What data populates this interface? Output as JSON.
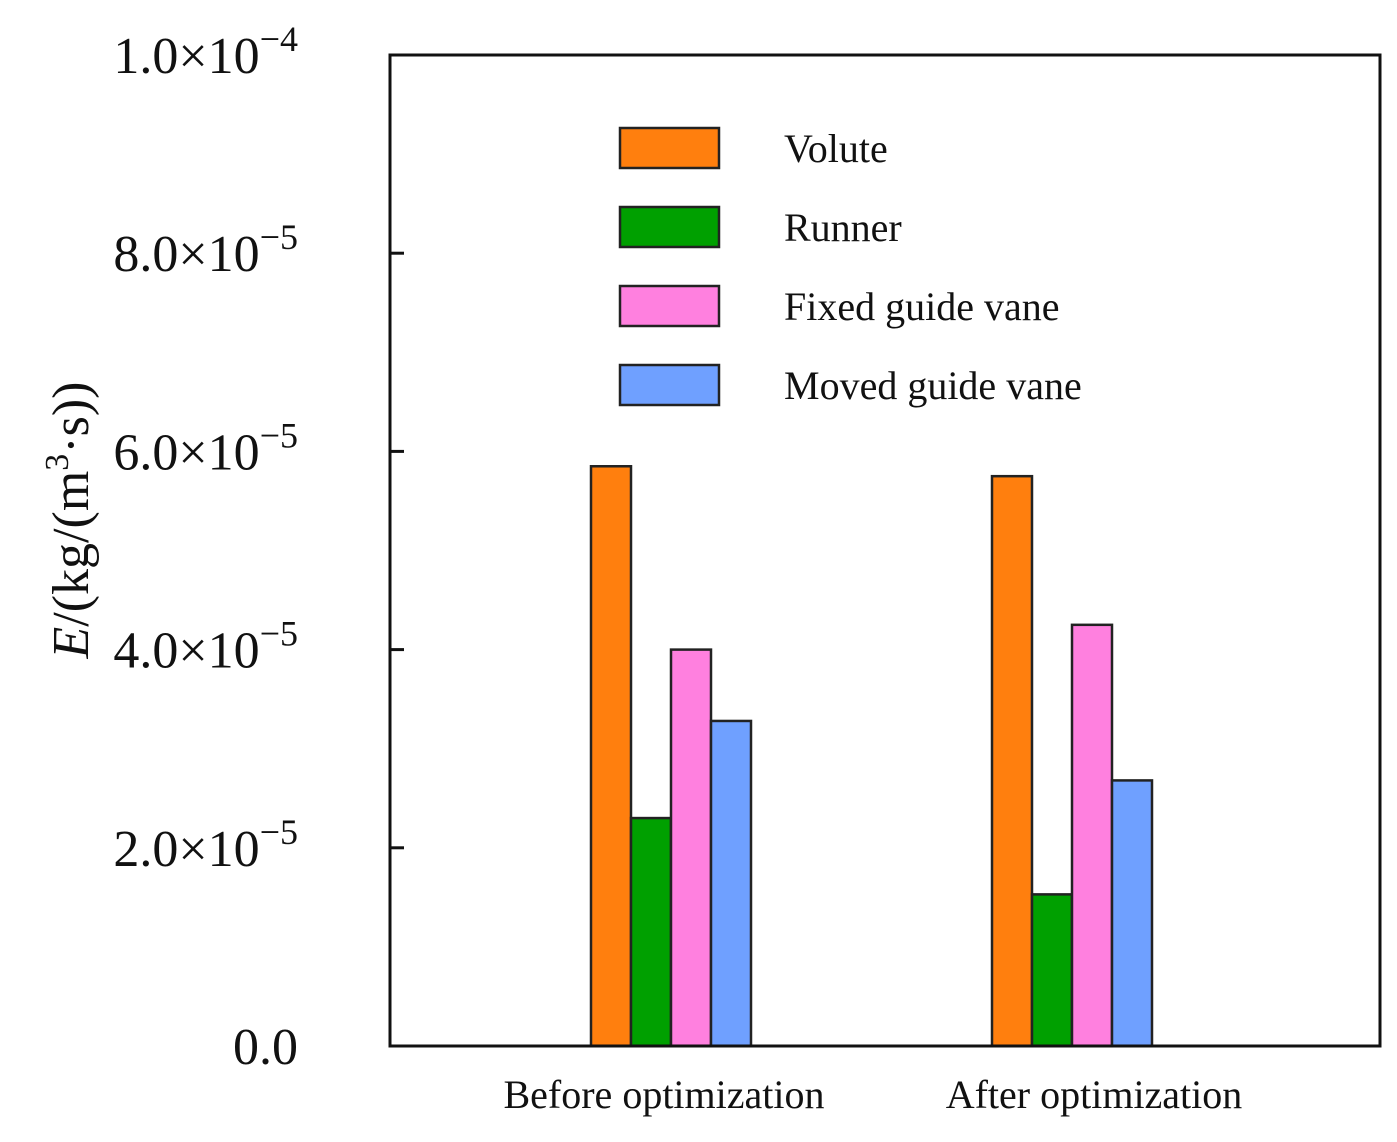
{
  "chart_data": {
    "type": "bar",
    "title": "",
    "xlabel": "",
    "ylabel": {
      "italic": "E",
      "text": "/(kg/(m",
      "superscript": "3",
      "suffix": "·s))"
    },
    "ylim": [
      0,
      0.0001
    ],
    "categories": [
      "Before optimization",
      "After optimization"
    ],
    "series": [
      {
        "name": "Volute",
        "color": "#ff7f0e",
        "values": [
          5.85e-05,
          5.75e-05
        ]
      },
      {
        "name": "Runner",
        "color": "#00a000",
        "values": [
          2.3e-05,
          1.53e-05
        ]
      },
      {
        "name": "Fixed guide vane",
        "color": "#ff80df",
        "values": [
          4e-05,
          4.25e-05
        ]
      },
      {
        "name": "Moved guide vane",
        "color": "#6fa0ff",
        "values": [
          3.28e-05,
          2.68e-05
        ]
      }
    ],
    "yticks": [
      {
        "value": 0,
        "mantissa": "0.0",
        "exponent": ""
      },
      {
        "value": 2e-05,
        "mantissa": "2.0×10",
        "exponent": "−5"
      },
      {
        "value": 4e-05,
        "mantissa": "4.0×10",
        "exponent": "−5"
      },
      {
        "value": 6e-05,
        "mantissa": "6.0×10",
        "exponent": "−5"
      },
      {
        "value": 8e-05,
        "mantissa": "8.0×10",
        "exponent": "−5"
      },
      {
        "value": 0.0001,
        "mantissa": "1.0×10",
        "exponent": "−4"
      }
    ],
    "legend_position": "top-center",
    "grid": false
  }
}
